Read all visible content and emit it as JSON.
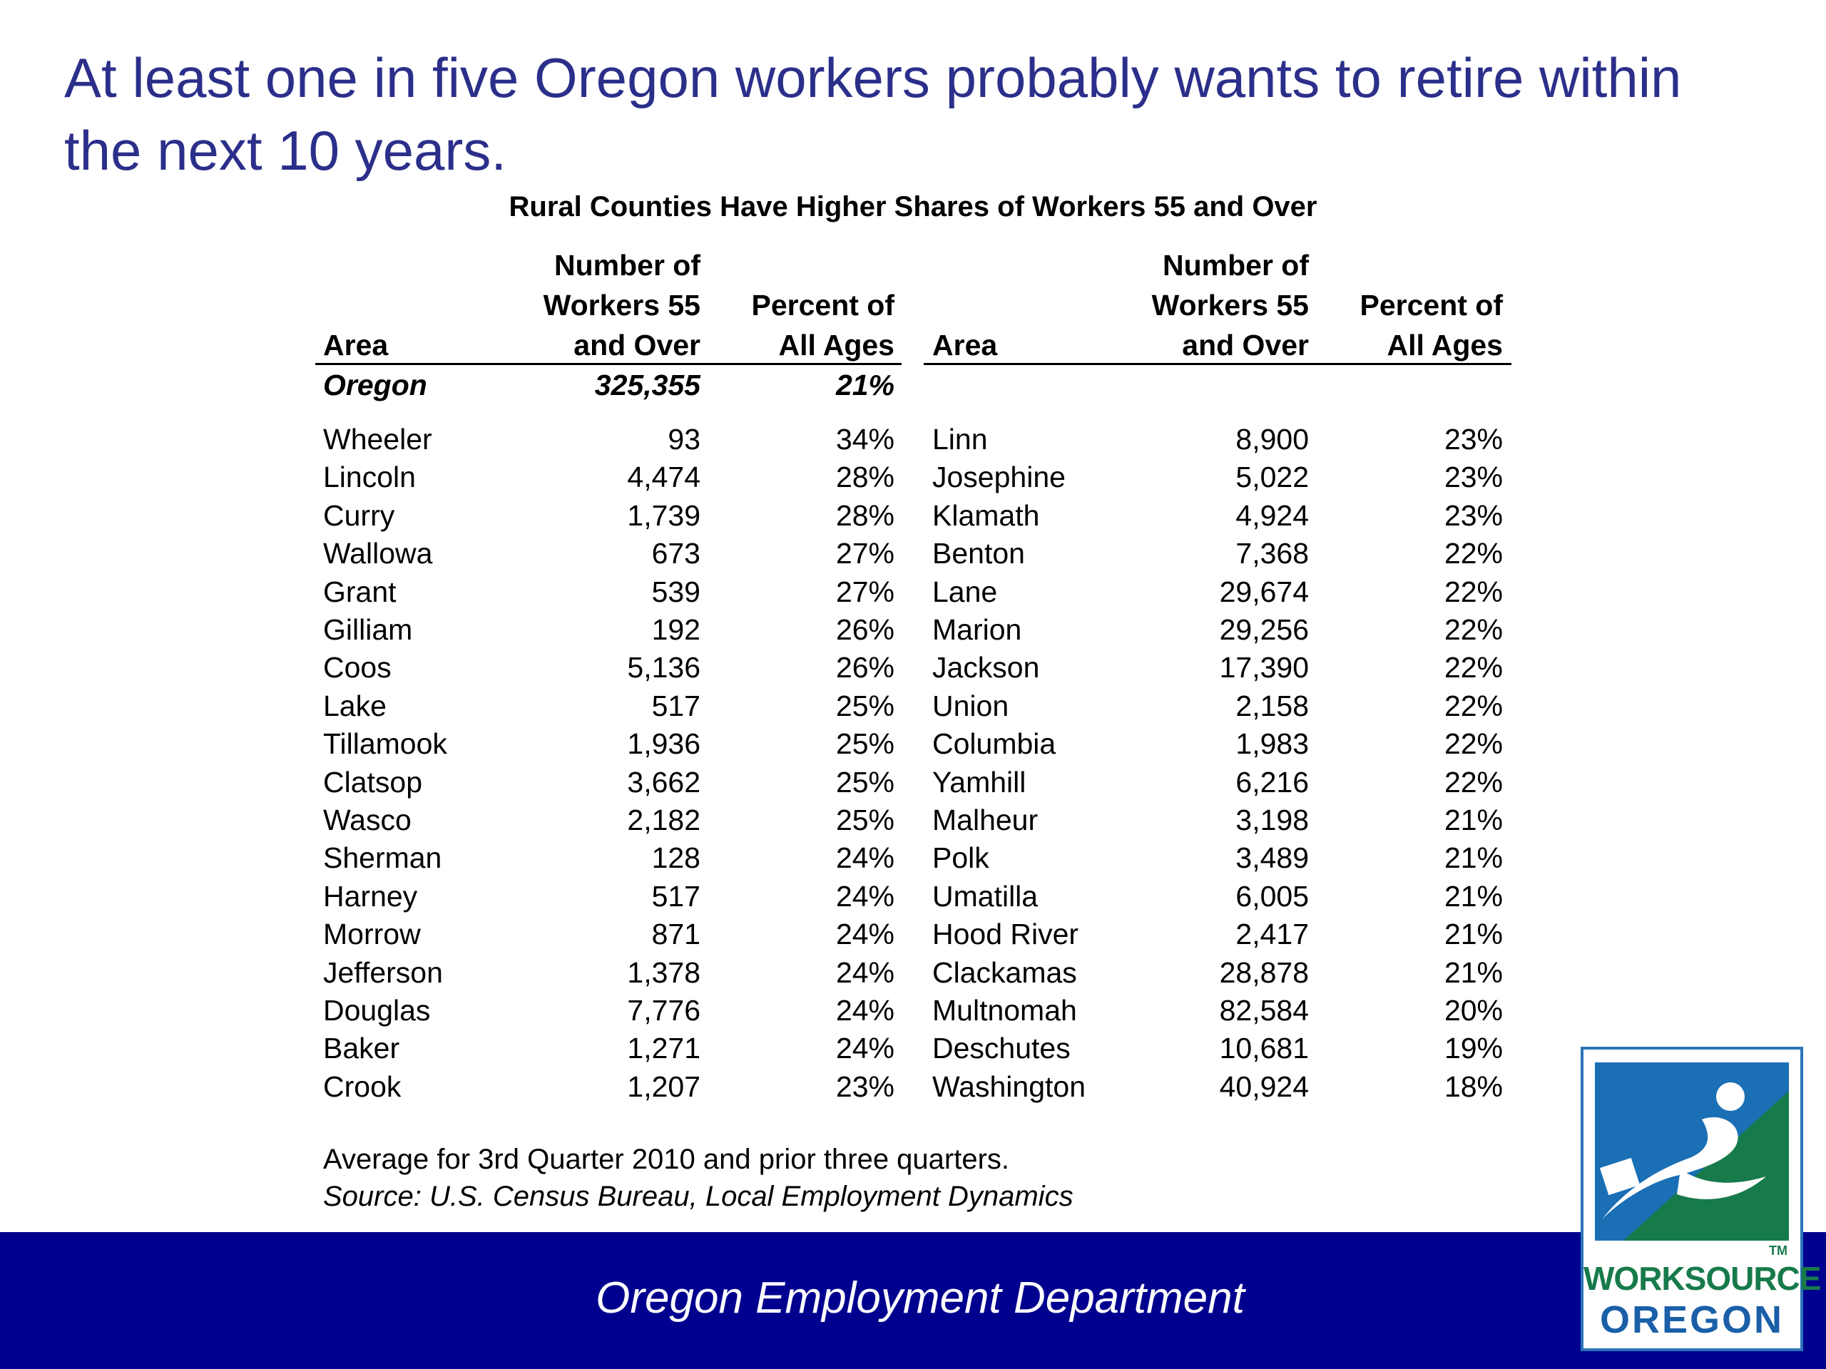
{
  "title": "At least one in five Oregon workers probably wants to retire within the next 10 years.",
  "table_title": "Rural Counties Have Higher Shares of Workers 55 and Over",
  "headers": {
    "area": "Area",
    "workers_l1": "Number of",
    "workers_l2": "Workers 55",
    "workers_l3": "and Over",
    "percent_l1": "Percent of",
    "percent_l2": "All Ages"
  },
  "state_row": {
    "area": "Oregon",
    "workers": "325,355",
    "percent": "21%"
  },
  "left_rows": [
    {
      "area": "Wheeler",
      "workers": "93",
      "percent": "34%"
    },
    {
      "area": "Lincoln",
      "workers": "4,474",
      "percent": "28%"
    },
    {
      "area": "Curry",
      "workers": "1,739",
      "percent": "28%"
    },
    {
      "area": "Wallowa",
      "workers": "673",
      "percent": "27%"
    },
    {
      "area": "Grant",
      "workers": "539",
      "percent": "27%"
    },
    {
      "area": "Gilliam",
      "workers": "192",
      "percent": "26%"
    },
    {
      "area": "Coos",
      "workers": "5,136",
      "percent": "26%"
    },
    {
      "area": "Lake",
      "workers": "517",
      "percent": "25%"
    },
    {
      "area": "Tillamook",
      "workers": "1,936",
      "percent": "25%"
    },
    {
      "area": "Clatsop",
      "workers": "3,662",
      "percent": "25%"
    },
    {
      "area": "Wasco",
      "workers": "2,182",
      "percent": "25%"
    },
    {
      "area": "Sherman",
      "workers": "128",
      "percent": "24%"
    },
    {
      "area": "Harney",
      "workers": "517",
      "percent": "24%"
    },
    {
      "area": "Morrow",
      "workers": "871",
      "percent": "24%"
    },
    {
      "area": "Jefferson",
      "workers": "1,378",
      "percent": "24%"
    },
    {
      "area": "Douglas",
      "workers": "7,776",
      "percent": "24%"
    },
    {
      "area": "Baker",
      "workers": "1,271",
      "percent": "24%"
    },
    {
      "area": "Crook",
      "workers": "1,207",
      "percent": "23%"
    }
  ],
  "right_rows": [
    {
      "area": "Linn",
      "workers": "8,900",
      "percent": "23%"
    },
    {
      "area": "Josephine",
      "workers": "5,022",
      "percent": "23%"
    },
    {
      "area": "Klamath",
      "workers": "4,924",
      "percent": "23%"
    },
    {
      "area": "Benton",
      "workers": "7,368",
      "percent": "22%"
    },
    {
      "area": "Lane",
      "workers": "29,674",
      "percent": "22%"
    },
    {
      "area": "Marion",
      "workers": "29,256",
      "percent": "22%"
    },
    {
      "area": "Jackson",
      "workers": "17,390",
      "percent": "22%"
    },
    {
      "area": "Union",
      "workers": "2,158",
      "percent": "22%"
    },
    {
      "area": "Columbia",
      "workers": "1,983",
      "percent": "22%"
    },
    {
      "area": "Yamhill",
      "workers": "6,216",
      "percent": "22%"
    },
    {
      "area": "Malheur",
      "workers": "3,198",
      "percent": "21%"
    },
    {
      "area": "Polk",
      "workers": "3,489",
      "percent": "21%"
    },
    {
      "area": "Umatilla",
      "workers": "6,005",
      "percent": "21%"
    },
    {
      "area": "Hood River",
      "workers": "2,417",
      "percent": "21%"
    },
    {
      "area": "Clackamas",
      "workers": "28,878",
      "percent": "21%"
    },
    {
      "area": "Multnomah",
      "workers": "82,584",
      "percent": "20%"
    },
    {
      "area": "Deschutes",
      "workers": "10,681",
      "percent": "19%"
    },
    {
      "area": "Washington",
      "workers": "40,924",
      "percent": "18%"
    }
  ],
  "note": "Average for 3rd Quarter 2010 and prior three quarters.",
  "source": "Source: U.S. Census Bureau, Local Employment Dynamics",
  "footer": "Oregon Employment Department",
  "logo": {
    "line1": "WORKSOURCE",
    "line2": "OREGON",
    "tm": "TM"
  },
  "colors": {
    "title": "#2b2f8a",
    "footer_bar": "#00008f",
    "logo_blue": "#1a6fb5",
    "logo_green": "#177a4b"
  }
}
